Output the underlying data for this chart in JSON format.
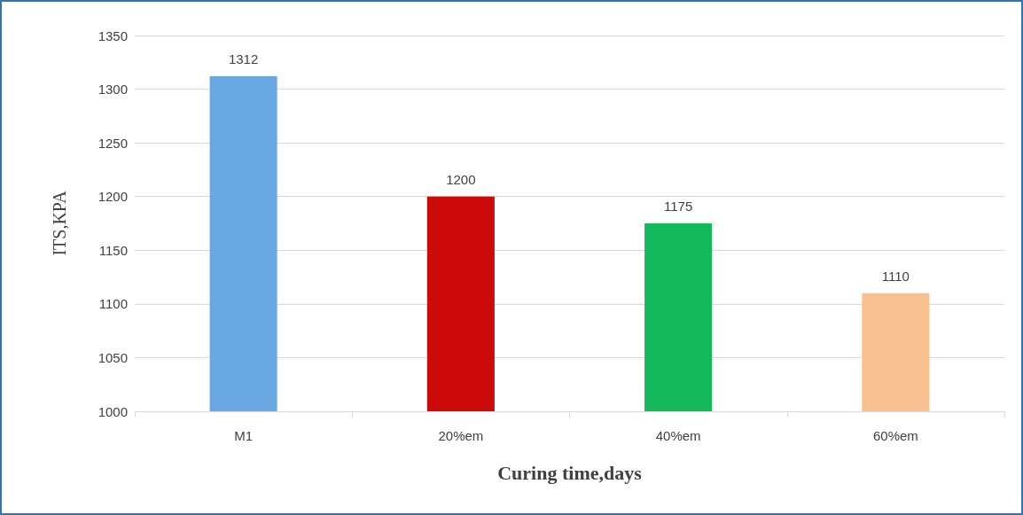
{
  "chart_data": {
    "type": "bar",
    "xlabel": "Curing time,days",
    "ylabel": "ITS,KPA",
    "categories": [
      "M1",
      "20%em",
      "40%em",
      "60%em"
    ],
    "values": [
      1312,
      1200,
      1175,
      1110
    ],
    "colors": [
      "#6aa8e4",
      "#cc0a0a",
      "#12b85a",
      "#f9c090"
    ],
    "ylim": [
      1000,
      1350
    ],
    "yticks": [
      1000,
      1050,
      1100,
      1150,
      1200,
      1250,
      1300,
      1350
    ],
    "grid": "y",
    "data_labels": true
  }
}
